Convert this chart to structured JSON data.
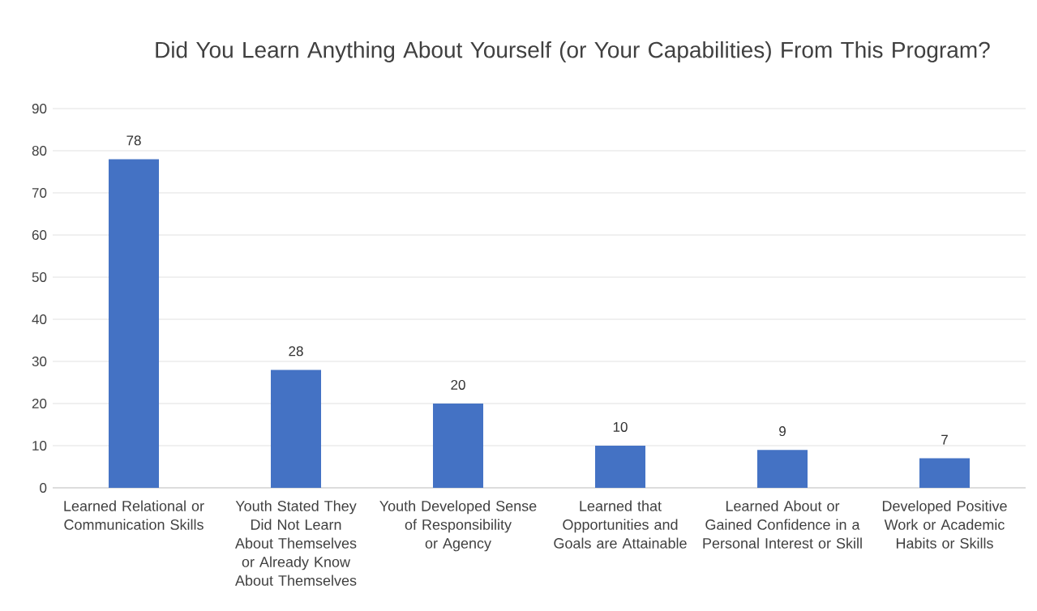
{
  "chart_data": {
    "type": "bar",
    "title": "Did You Learn Anything About Yourself (or Your Capabilities) From This Program?",
    "categories": [
      "Learned Relational or Communication Skills",
      "Youth Stated They Did Not Learn About Themselves or Already Know About Themselves",
      "Youth Developed Sense of Responsibility or Agency",
      "Learned that Opportunities and Goals are Attainable",
      "Learned About or Gained Confidence in a Personal Interest or Skill",
      "Developed Positive Work or Academic Habits or Skills"
    ],
    "values": [
      78,
      28,
      20,
      10,
      9,
      7
    ],
    "color": "#4472c4",
    "data_labels": true,
    "ylim": [
      0,
      90
    ],
    "yticks": [
      0,
      10,
      20,
      30,
      40,
      50,
      60,
      70,
      80,
      90
    ],
    "grid": "y"
  }
}
